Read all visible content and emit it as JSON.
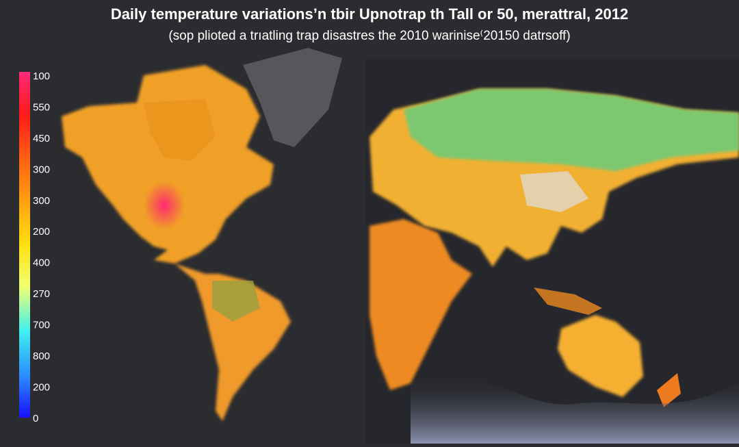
{
  "title": "Daily temperature variations’n tbir Upnotrap th Tall or 50, merattral, 2012",
  "subtitle": "(sop plioted a trıatling trap disastres the 2010 warinise⁽20150 datrsoff)",
  "legend": {
    "labels": [
      "100",
      "550",
      "450",
      "300",
      "300",
      "200",
      "400",
      "270",
      "700",
      "800",
      "200",
      "0"
    ]
  }
}
